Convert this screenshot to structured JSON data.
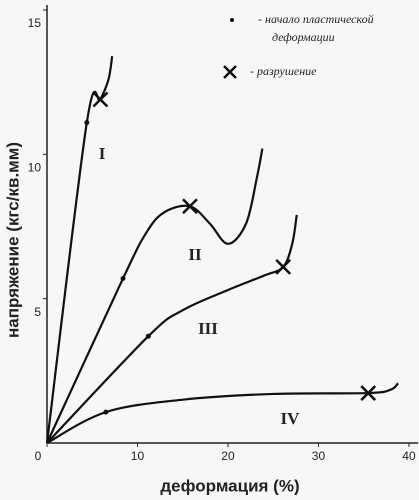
{
  "chart_data": {
    "type": "line",
    "xlabel": "деформация (%)",
    "ylabel": "напряжение (кгс/кв.мм)",
    "xlim": [
      0,
      41
    ],
    "ylim": [
      0,
      15
    ],
    "xticks": [
      0,
      10,
      20,
      30,
      40
    ],
    "yticks": [
      5,
      10,
      15
    ],
    "color": "#111111",
    "legend": {
      "onset_line1": "- начало  пластической",
      "onset_line2": "деформации",
      "fracture": "- разрушение"
    },
    "series": [
      {
        "name": "I",
        "x": [
          0,
          4.4,
          5.9,
          6.8,
          7.2
        ],
        "values": [
          0,
          11.1,
          11.9,
          12.6,
          13.4
        ],
        "onset": [
          4.4,
          11.1
        ],
        "fracture": [
          5.9,
          11.9
        ]
      },
      {
        "name": "II",
        "x": [
          0,
          8.4,
          11,
          13,
          15.8,
          18,
          20,
          22,
          23.2,
          23.8
        ],
        "values": [
          0,
          5.7,
          7.3,
          8.0,
          8.2,
          7.6,
          6.9,
          7.6,
          9.2,
          10.2
        ],
        "onset": [
          8.4,
          5.7
        ],
        "fracture": [
          15.8,
          8.2
        ]
      },
      {
        "name": "III",
        "x": [
          0,
          11.2,
          15,
          20,
          24,
          26.1,
          27.1,
          27.6
        ],
        "values": [
          0,
          3.7,
          4.6,
          5.3,
          5.8,
          6.1,
          6.9,
          7.9
        ],
        "onset": [
          11.2,
          3.7
        ],
        "fracture": [
          26.1,
          6.1
        ]
      },
      {
        "name": "IV",
        "x": [
          0,
          6.5,
          15,
          25,
          35.5,
          38,
          38.8
        ],
        "values": [
          0,
          1.07,
          1.5,
          1.7,
          1.73,
          1.85,
          2.07
        ],
        "onset": [
          6.5,
          1.07
        ],
        "fracture": [
          35.5,
          1.73
        ]
      }
    ]
  }
}
